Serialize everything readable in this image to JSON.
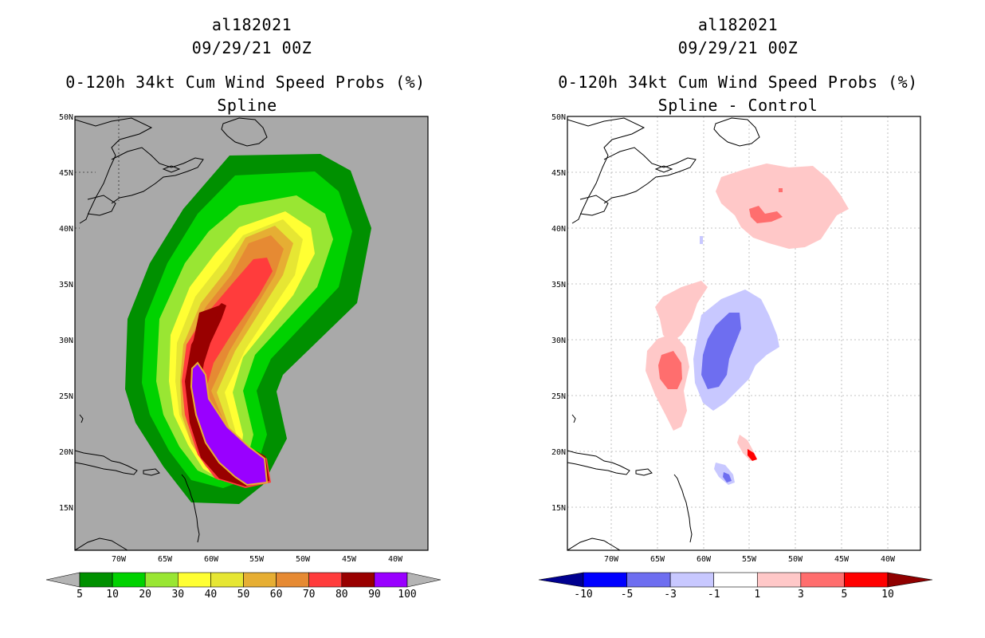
{
  "panels": [
    {
      "storm_id": "al182021",
      "datetime": "09/29/21 00Z",
      "product": "0-120h 34kt Cum Wind Speed Probs (%)",
      "subtitle": "Spline",
      "lat_labels": [
        "50N",
        "45N",
        "40N",
        "35N",
        "30N",
        "25N",
        "20N",
        "15N"
      ],
      "lon_labels": [
        "70W",
        "65W",
        "60W",
        "55W",
        "50W",
        "45W",
        "40W"
      ],
      "background_color": "#a9a9a9",
      "colorbar": {
        "labels": [
          "5",
          "10",
          "20",
          "30",
          "40",
          "50",
          "60",
          "70",
          "80",
          "90",
          "100"
        ],
        "colors": [
          "#009000",
          "#00d200",
          "#99e633",
          "#ffff33",
          "#e6e633",
          "#e6ae33",
          "#e68a33",
          "#ff3c3c",
          "#990000",
          "#9900ff"
        ],
        "under_color": "#b4b4b4",
        "over_color": "#b4b4b4"
      }
    },
    {
      "storm_id": "al182021",
      "datetime": "09/29/21 00Z",
      "product": "0-120h 34kt Cum Wind Speed Probs (%)",
      "subtitle": "Spline - Control",
      "lat_labels": [
        "50N",
        "45N",
        "40N",
        "35N",
        "30N",
        "25N",
        "20N",
        "15N"
      ],
      "lon_labels": [
        "70W",
        "65W",
        "60W",
        "55W",
        "50W",
        "45W",
        "40W"
      ],
      "background_color": "#ffffff",
      "colorbar": {
        "labels": [
          "-10",
          "-5",
          "-3",
          "-1",
          "1",
          "3",
          "5",
          "10"
        ],
        "colors": [
          "#0000ff",
          "#6e6ef0",
          "#c8c8ff",
          "#ffffff",
          "#ffc8c8",
          "#ff6e6e",
          "#ff0000"
        ],
        "under_color": "#000090",
        "over_color": "#900000"
      }
    }
  ]
}
